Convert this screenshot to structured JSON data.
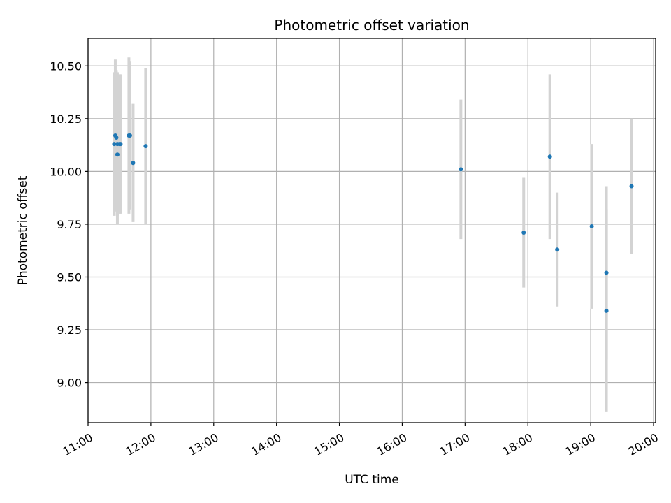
{
  "chart_data": {
    "type": "scatter",
    "title": "Photometric offset variation",
    "xlabel": "UTC time",
    "ylabel": "Photometric offset",
    "x_ticks": [
      "11:00",
      "12:00",
      "13:00",
      "14:00",
      "15:00",
      "16:00",
      "17:00",
      "18:00",
      "19:00",
      "20:00"
    ],
    "y_ticks": [
      "9.00",
      "9.25",
      "9.50",
      "9.75",
      "10.00",
      "10.25",
      "10.50"
    ],
    "xlim": [
      "11:00",
      "20:02"
    ],
    "ylim": [
      8.81,
      10.63
    ],
    "grid": true,
    "point_color": "#1f77b4",
    "errorbar_color": "#d3d3d3",
    "points": [
      {
        "t": "11:25",
        "y": 10.13,
        "err": 0.34
      },
      {
        "t": "11:26",
        "y": 10.17,
        "err": 0.36
      },
      {
        "t": "11:27",
        "y": 10.16,
        "err": 0.32
      },
      {
        "t": "11:28",
        "y": 10.13,
        "err": 0.34
      },
      {
        "t": "11:28",
        "y": 10.08,
        "err": 0.33
      },
      {
        "t": "11:30",
        "y": 10.13,
        "err": 0.33
      },
      {
        "t": "11:31",
        "y": 10.13,
        "err": 0.33
      },
      {
        "t": "11:39",
        "y": 10.17,
        "err": 0.37
      },
      {
        "t": "11:40",
        "y": 10.17,
        "err": 0.35
      },
      {
        "t": "11:43",
        "y": 10.04,
        "err": 0.28
      },
      {
        "t": "11:55",
        "y": 10.12,
        "err": 0.37
      },
      {
        "t": "16:56",
        "y": 10.01,
        "err": 0.33
      },
      {
        "t": "17:56",
        "y": 9.71,
        "err": 0.26
      },
      {
        "t": "18:21",
        "y": 10.07,
        "err": 0.39
      },
      {
        "t": "18:28",
        "y": 9.63,
        "err": 0.27
      },
      {
        "t": "19:01",
        "y": 9.74,
        "err": 0.39
      },
      {
        "t": "19:15",
        "y": 9.52,
        "err": 0.41
      },
      {
        "t": "19:15",
        "y": 9.34,
        "err": 0.48
      },
      {
        "t": "19:39",
        "y": 9.93,
        "err": 0.32
      }
    ]
  }
}
